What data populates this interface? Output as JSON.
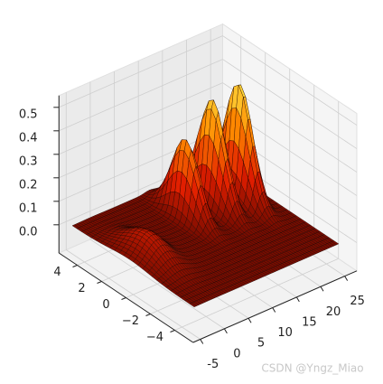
{
  "chart_data": {
    "type": "surface",
    "xlim": [
      -6.5,
      27.5
    ],
    "ylim": [
      -5.5,
      5.5
    ],
    "zlim": [
      -0.12,
      0.55
    ],
    "xticks": [
      -5,
      0,
      5,
      10,
      15,
      20,
      25
    ],
    "yticks": [
      {
        "value": -4,
        "label": "−4"
      },
      {
        "value": -2,
        "label": "−2"
      },
      0,
      2,
      4
    ],
    "zticks": [
      {
        "value": 0,
        "label": "0.0"
      },
      {
        "value": 0.1,
        "label": "0.1"
      },
      {
        "value": 0.2,
        "label": "0.2"
      },
      {
        "value": 0.3,
        "label": "0.3"
      },
      {
        "value": 0.4,
        "label": "0.4"
      },
      {
        "value": 0.5,
        "label": "0.5"
      }
    ],
    "surface_x": [
      -5,
      25
    ],
    "surface_y": [
      -5,
      5
    ],
    "peaks": [
      {
        "x": -1,
        "y": 0.3,
        "z": 0.1
      },
      {
        "x": 11,
        "y": 2,
        "z": 0.33
      },
      {
        "x": 16.5,
        "y": 2,
        "z": 0.45
      },
      {
        "x": 21,
        "y": 1.6,
        "z": 0.5
      }
    ],
    "cmap": "hot",
    "grid": true
  },
  "watermark": "CSDN @Yngz_Miao"
}
